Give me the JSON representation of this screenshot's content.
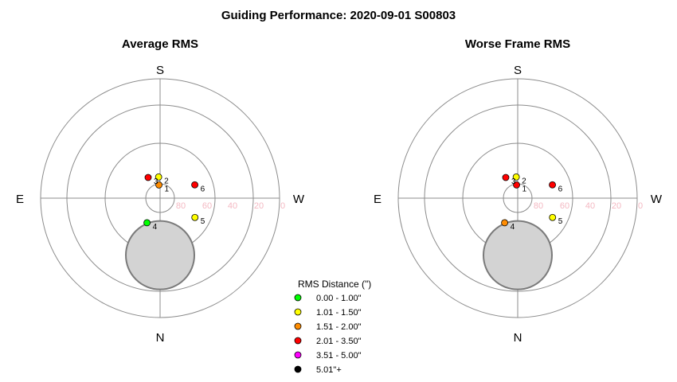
{
  "title": "Guiding Performance: 2020-09-01 S00803",
  "chart_data": [
    {
      "type": "scatter",
      "subtitle": "Average RMS",
      "directions": {
        "top": "S",
        "bottom": "N",
        "left": "E",
        "right": "W"
      },
      "altitude_ticks": [
        "80",
        "60",
        "40",
        "20",
        "0"
      ],
      "moon": {
        "azimuth_deg": 0,
        "altitude_deg": 47
      },
      "points": [
        {
          "id": "1",
          "azimuth_deg": 175,
          "altitude_deg": 80,
          "color": "#ff8c00"
        },
        {
          "id": "2",
          "azimuth_deg": 176,
          "altitude_deg": 74,
          "color": "#ffff00"
        },
        {
          "id": "3",
          "azimuth_deg": 150,
          "altitude_deg": 72,
          "color": "#ff0000"
        },
        {
          "id": "4",
          "azimuth_deg": 28,
          "altitude_deg": 69,
          "color": "#00ff00"
        },
        {
          "id": "5",
          "azimuth_deg": 299,
          "altitude_deg": 60,
          "color": "#ffff00"
        },
        {
          "id": "6",
          "azimuth_deg": 249,
          "altitude_deg": 62,
          "color": "#ff0000"
        }
      ]
    },
    {
      "type": "scatter",
      "subtitle": "Worse Frame RMS",
      "directions": {
        "top": "S",
        "bottom": "N",
        "left": "E",
        "right": "W"
      },
      "altitude_ticks": [
        "80",
        "60",
        "40",
        "20",
        "0"
      ],
      "moon": {
        "azimuth_deg": 0,
        "altitude_deg": 47
      },
      "points": [
        {
          "id": "1",
          "azimuth_deg": 175,
          "altitude_deg": 80,
          "color": "#ff0000"
        },
        {
          "id": "2",
          "azimuth_deg": 176,
          "altitude_deg": 74,
          "color": "#ffff00"
        },
        {
          "id": "3",
          "azimuth_deg": 150,
          "altitude_deg": 72,
          "color": "#ff0000"
        },
        {
          "id": "4",
          "azimuth_deg": 28,
          "altitude_deg": 69,
          "color": "#ff8c00"
        },
        {
          "id": "5",
          "azimuth_deg": 299,
          "altitude_deg": 60,
          "color": "#ffff00"
        },
        {
          "id": "6",
          "azimuth_deg": 249,
          "altitude_deg": 62,
          "color": "#ff0000"
        }
      ]
    }
  ],
  "legend": {
    "title": "RMS Distance (\")",
    "items": [
      {
        "label": "0.00 - 1.00\"",
        "color": "#00ff00"
      },
      {
        "label": "1.01 - 1.50\"",
        "color": "#ffff00"
      },
      {
        "label": "1.51 - 2.00\"",
        "color": "#ff8c00"
      },
      {
        "label": "2.01 - 3.50\"",
        "color": "#ff0000"
      },
      {
        "label": "3.51 - 5.00\"",
        "color": "#ff00ff"
      },
      {
        "label": "5.01\"+",
        "color": "#000000"
      }
    ]
  }
}
